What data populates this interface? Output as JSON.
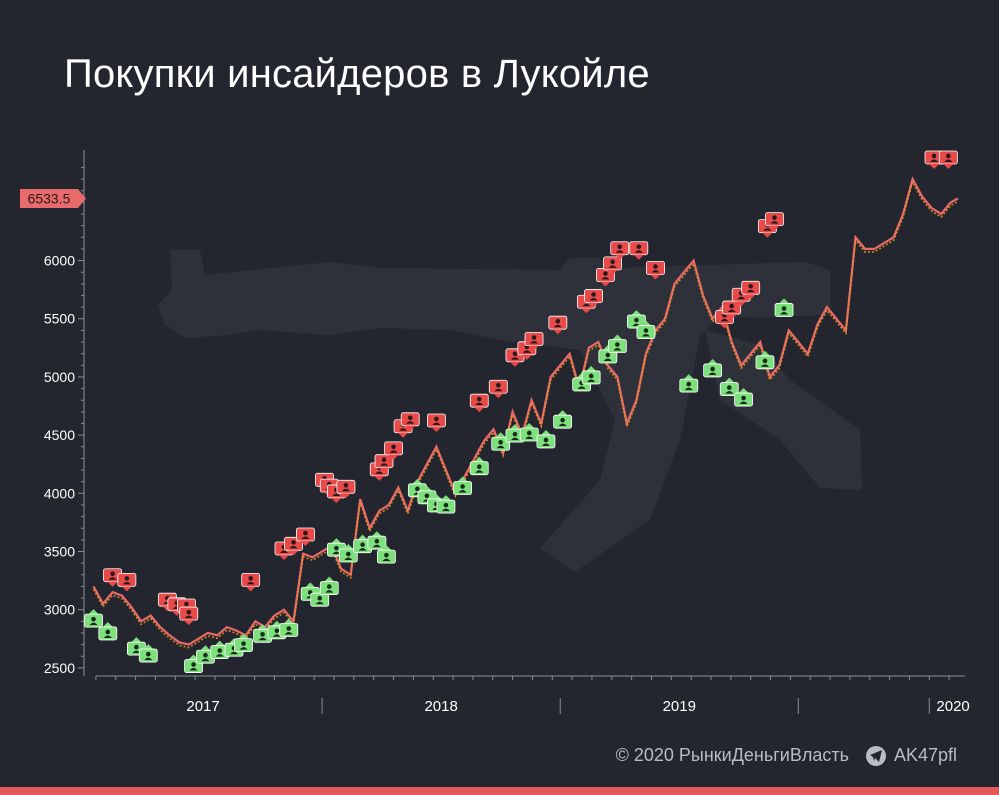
{
  "title": "Покупки инсайдеров в Лукойле",
  "footer": {
    "copyright": "© 2020  РынкиДеньгиВласть",
    "handle": "AK47pfl",
    "handle_icon": "telegram-icon"
  },
  "colors": {
    "background": "#23262e",
    "line_price": "#e86a6a",
    "line_overlay": "#e8901e",
    "buy_marker": "#7de07d",
    "sell_marker": "#e84a4a",
    "current_price_label": "#e86a6a",
    "axis_text": "#ffffff",
    "watermark": "#3a3d46"
  },
  "watermark_icon": "rifle-silhouette-icon",
  "chart_data": {
    "type": "line",
    "title": "Покупки инсайдеров в Лукойле",
    "xlabel": "",
    "ylabel": "",
    "x_ticks": [
      "2017",
      "2018",
      "2019",
      "2020"
    ],
    "y_ticks": [
      2500,
      3000,
      3500,
      4000,
      4500,
      5000,
      5500,
      6000
    ],
    "ylim": [
      2430,
      6950
    ],
    "xlim": [
      2016.45,
      2020.15
    ],
    "current_price_label": "6533.5",
    "series": [
      {
        "x": [
          2016.49,
          2016.53,
          2016.57,
          2016.61,
          2016.65,
          2016.69,
          2016.73,
          2016.77,
          2016.81,
          2016.85,
          2016.89,
          2016.93,
          2016.97,
          2017.01,
          2017.05,
          2017.09,
          2017.13,
          2017.17,
          2017.21,
          2017.25,
          2017.29,
          2017.33,
          2017.37,
          2017.41,
          2017.45,
          2017.49,
          2017.53,
          2017.57,
          2017.61,
          2017.65,
          2017.69,
          2017.73,
          2017.77,
          2017.81,
          2017.85,
          2017.89,
          2017.93,
          2017.97,
          2018.01,
          2018.05,
          2018.09,
          2018.13,
          2018.17,
          2018.21,
          2018.25,
          2018.29,
          2018.33,
          2018.37,
          2018.41,
          2018.45,
          2018.49,
          2018.53,
          2018.57,
          2018.61,
          2018.65,
          2018.69,
          2018.73,
          2018.77,
          2018.81,
          2018.85,
          2018.89,
          2018.93,
          2018.97,
          2019.01,
          2019.05,
          2019.09,
          2019.13,
          2019.17,
          2019.21,
          2019.25,
          2019.29,
          2019.33,
          2019.37,
          2019.41,
          2019.45,
          2019.49,
          2019.53,
          2019.57,
          2019.61,
          2019.65,
          2019.69,
          2019.73,
          2019.77,
          2019.81,
          2019.85,
          2019.89,
          2019.93,
          2019.97,
          2020.01,
          2020.05,
          2020.09,
          2020.12
        ],
        "y": [
          3200,
          3050,
          3150,
          3120,
          3020,
          2900,
          2950,
          2850,
          2780,
          2720,
          2700,
          2750,
          2800,
          2780,
          2850,
          2820,
          2780,
          2900,
          2850,
          2950,
          3000,
          2900,
          3480,
          3450,
          3500,
          3550,
          3350,
          3300,
          3950,
          3700,
          3850,
          3900,
          4050,
          3850,
          4100,
          4250,
          4400,
          4200,
          4000,
          4150,
          4300,
          4450,
          4550,
          4350,
          4700,
          4500,
          4800,
          4600,
          5000,
          5100,
          5200,
          4900,
          5250,
          5300,
          5100,
          5000,
          4600,
          4800,
          5200,
          5400,
          5500,
          5800,
          5900,
          6000,
          5700,
          5500,
          5600,
          5300,
          5100,
          5200,
          5300,
          5000,
          5100,
          5400,
          5300,
          5200,
          5450,
          5600,
          5500,
          5400,
          6200,
          6100,
          6100,
          6150,
          6200,
          6400,
          6700,
          6550,
          6450,
          6400,
          6500,
          6533
        ]
      }
    ],
    "insider_sells": [
      [
        2016.57,
        3240
      ],
      [
        2016.63,
        3200
      ],
      [
        2016.8,
        3030
      ],
      [
        2016.84,
        2990
      ],
      [
        2016.88,
        2980
      ],
      [
        2016.89,
        2910
      ],
      [
        2017.15,
        3200
      ],
      [
        2017.29,
        3470
      ],
      [
        2017.33,
        3510
      ],
      [
        2017.38,
        3590
      ],
      [
        2017.46,
        4060
      ],
      [
        2017.48,
        4010
      ],
      [
        2017.51,
        3960
      ],
      [
        2017.55,
        4000
      ],
      [
        2017.69,
        4150
      ],
      [
        2017.71,
        4220
      ],
      [
        2017.75,
        4330
      ],
      [
        2017.79,
        4520
      ],
      [
        2017.82,
        4580
      ],
      [
        2017.93,
        4570
      ],
      [
        2018.11,
        4740
      ],
      [
        2018.19,
        4860
      ],
      [
        2018.26,
        5130
      ],
      [
        2018.31,
        5190
      ],
      [
        2018.34,
        5270
      ],
      [
        2018.44,
        5410
      ],
      [
        2018.56,
        5590
      ],
      [
        2018.59,
        5640
      ],
      [
        2018.64,
        5820
      ],
      [
        2018.67,
        5920
      ],
      [
        2018.7,
        6050
      ],
      [
        2018.78,
        6050
      ],
      [
        2018.85,
        5880
      ],
      [
        2019.14,
        5460
      ],
      [
        2019.17,
        5540
      ],
      [
        2019.21,
        5650
      ],
      [
        2019.25,
        5710
      ],
      [
        2019.32,
        6240
      ],
      [
        2019.35,
        6300
      ],
      [
        2020.02,
        6830
      ],
      [
        2020.08,
        6830
      ]
    ],
    "insider_buys": [
      [
        2016.49,
        2970
      ],
      [
        2016.55,
        2860
      ],
      [
        2016.67,
        2730
      ],
      [
        2016.72,
        2670
      ],
      [
        2016.91,
        2580
      ],
      [
        2016.96,
        2660
      ],
      [
        2017.02,
        2700
      ],
      [
        2017.08,
        2720
      ],
      [
        2017.12,
        2760
      ],
      [
        2017.2,
        2840
      ],
      [
        2017.26,
        2870
      ],
      [
        2017.31,
        2890
      ],
      [
        2017.4,
        3200
      ],
      [
        2017.44,
        3150
      ],
      [
        2017.48,
        3250
      ],
      [
        2017.51,
        3580
      ],
      [
        2017.56,
        3530
      ],
      [
        2017.62,
        3610
      ],
      [
        2017.68,
        3640
      ],
      [
        2017.72,
        3520
      ],
      [
        2017.85,
        4090
      ],
      [
        2017.89,
        4030
      ],
      [
        2017.93,
        3960
      ],
      [
        2017.97,
        3950
      ],
      [
        2018.04,
        4110
      ],
      [
        2018.11,
        4280
      ],
      [
        2018.2,
        4490
      ],
      [
        2018.26,
        4560
      ],
      [
        2018.32,
        4570
      ],
      [
        2018.39,
        4510
      ],
      [
        2018.46,
        4680
      ],
      [
        2018.54,
        5000
      ],
      [
        2018.58,
        5060
      ],
      [
        2018.65,
        5240
      ],
      [
        2018.69,
        5330
      ],
      [
        2018.77,
        5540
      ],
      [
        2018.81,
        5450
      ],
      [
        2018.99,
        4990
      ],
      [
        2019.09,
        5120
      ],
      [
        2019.16,
        4960
      ],
      [
        2019.22,
        4870
      ],
      [
        2019.31,
        5190
      ],
      [
        2019.39,
        5640
      ]
    ]
  }
}
